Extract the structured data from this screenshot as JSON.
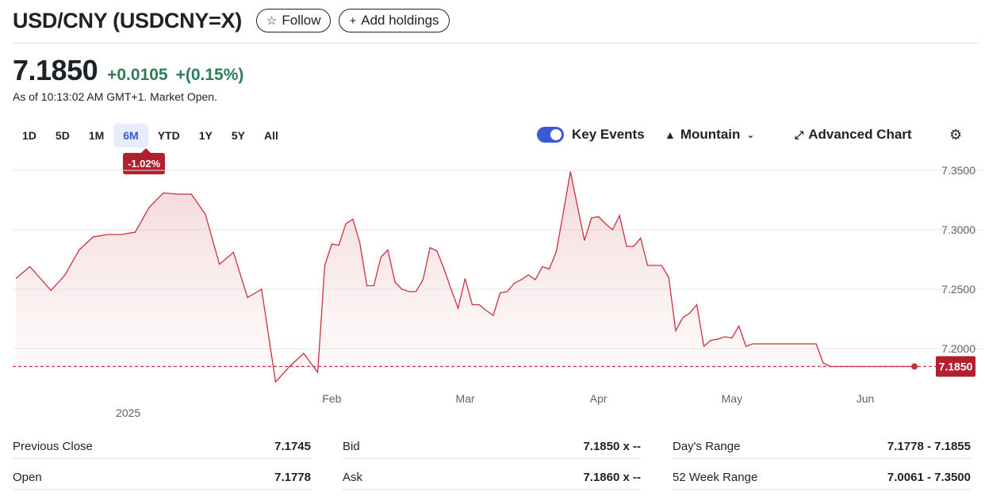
{
  "header": {
    "title": "USD/CNY (USDCNY=X)",
    "follow_label": "Follow",
    "add_label": "Add holdings"
  },
  "quote": {
    "price": "7.1850",
    "change": "+0.0105",
    "change_pct": "+(0.15%)",
    "as_of": "As of 10:13:02 AM GMT+1. Market Open."
  },
  "ranges": [
    "1D",
    "5D",
    "1M",
    "6M",
    "YTD",
    "1Y",
    "5Y",
    "All"
  ],
  "active_range": "6M",
  "range_badge": "-1.02%",
  "controls": {
    "key_events": "Key Events",
    "mountain": "Mountain",
    "advanced": "Advanced Chart"
  },
  "colors": {
    "line": "#c8323c",
    "accent": "#3a5ad6",
    "up": "#2e7d57",
    "badge": "#b3202d"
  },
  "chart_data": {
    "type": "area",
    "ylim": [
      7.16,
      7.36
    ],
    "yticks": [
      "7.3500",
      "7.3000",
      "7.2500",
      "7.2000"
    ],
    "ytick_values": [
      7.35,
      7.3,
      7.25,
      7.2
    ],
    "x_labels": [
      {
        "label": "Feb",
        "x": 45
      },
      {
        "label": "Mar",
        "x": 64
      },
      {
        "label": "Apr",
        "x": 83
      },
      {
        "label": "May",
        "x": 102
      },
      {
        "label": "Jun",
        "x": 121
      }
    ],
    "year_label": {
      "label": "2025",
      "x": 16
    },
    "last_value": "7.1850",
    "reference": 7.185,
    "x": [
      0,
      2,
      5,
      7,
      9,
      11,
      13,
      15,
      17,
      19,
      21,
      23,
      25,
      27,
      29,
      31,
      33,
      35,
      37,
      39,
      41,
      43,
      44,
      45,
      46,
      47,
      48,
      49,
      50,
      51,
      52,
      53,
      54,
      55,
      56,
      57,
      58,
      59,
      60,
      61,
      62,
      63,
      64,
      65,
      66,
      67,
      68,
      69,
      70,
      71,
      72,
      73,
      74,
      75,
      76,
      77,
      78,
      79,
      80,
      81,
      82,
      83,
      84,
      85,
      86,
      87,
      88,
      89,
      90,
      91,
      92,
      93,
      94,
      95,
      96,
      97,
      98,
      99,
      100,
      101,
      102,
      103,
      104,
      105,
      106,
      107,
      108,
      109,
      110,
      111,
      112,
      113,
      114,
      115,
      116,
      117,
      118,
      119,
      120,
      121,
      122,
      123,
      124,
      125,
      126,
      127,
      128
    ],
    "values": [
      7.259,
      7.269,
      7.249,
      7.262,
      7.283,
      7.294,
      7.296,
      7.296,
      7.298,
      7.319,
      7.331,
      7.33,
      7.33,
      7.313,
      7.271,
      7.281,
      7.243,
      7.25,
      7.172,
      7.185,
      7.196,
      7.18,
      7.27,
      7.288,
      7.287,
      7.305,
      7.309,
      7.289,
      7.253,
      7.253,
      7.277,
      7.283,
      7.256,
      7.25,
      7.248,
      7.248,
      7.258,
      7.285,
      7.282,
      7.267,
      7.25,
      7.234,
      7.259,
      7.237,
      7.237,
      7.232,
      7.228,
      7.247,
      7.248,
      7.255,
      7.258,
      7.262,
      7.258,
      7.269,
      7.267,
      7.282,
      7.315,
      7.349,
      7.32,
      7.291,
      7.31,
      7.311,
      7.305,
      7.3,
      7.312,
      7.286,
      7.286,
      7.293,
      7.27,
      7.27,
      7.27,
      7.26,
      7.215,
      7.226,
      7.23,
      7.237,
      7.202,
      7.207,
      7.208,
      7.21,
      7.209,
      7.219,
      7.202,
      7.204,
      7.204,
      7.204,
      7.204,
      7.204,
      7.204,
      7.204,
      7.204,
      7.204,
      7.204,
      7.188,
      7.185,
      7.185,
      7.185,
      7.185,
      7.185,
      7.185,
      7.185,
      7.185,
      7.185,
      7.185,
      7.185,
      7.185,
      7.185
    ]
  },
  "stats": [
    [
      {
        "label": "Previous Close",
        "value": "7.1745"
      },
      {
        "label": "Bid",
        "value": "7.1850 x --"
      },
      {
        "label": "Day's Range",
        "value": "7.1778 - 7.1855"
      }
    ],
    [
      {
        "label": "Open",
        "value": "7.1778"
      },
      {
        "label": "Ask",
        "value": "7.1860 x --"
      },
      {
        "label": "52 Week Range",
        "value": "7.0061 - 7.3500"
      }
    ]
  ]
}
